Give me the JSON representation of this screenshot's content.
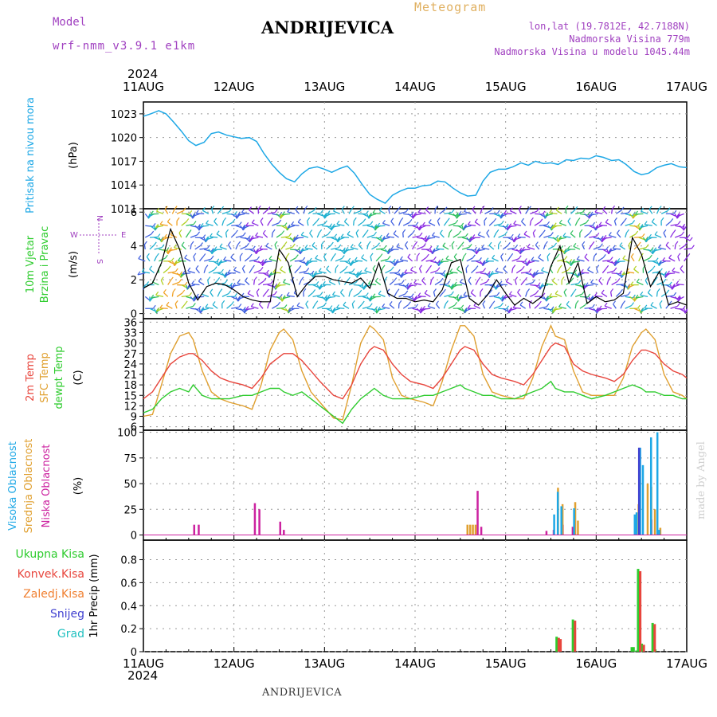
{
  "header": {
    "model_label": "Model",
    "model_name": "wrf-nmm_v3.9.1 e1km",
    "title": "ANDRIJEVICA",
    "subtitle": "Meteogram",
    "lonlat": "lon,lat (19.7812E, 42.7188N)",
    "station_alt": "Nadmorska Visina 779m",
    "model_alt": "Nadmorska Visina u modelu 1045.44m",
    "year_top": "2024",
    "year_bottom": "2024",
    "footer": "ANDRIJEVICA",
    "credit": "made by Angel"
  },
  "colors": {
    "pressure": "#1ea8e6",
    "temp2m": "#e8453c",
    "sfc": "#e0a030",
    "dew": "#2ecc2e",
    "cloud_high": "#1ea8e6",
    "cloud_mid": "#e0a030",
    "cloud_low": "#cc22a0",
    "precip_total": "#2ecc2e",
    "precip_conv": "#e8453c",
    "precip_frozen": "#f07f30",
    "precip_snow": "#4040d0",
    "precip_hail": "#20c0c0",
    "purple_text": "#a040c0"
  },
  "chart_data": [
    {
      "id": "pressure",
      "type": "line",
      "x_categories": [
        "11AUG",
        "12AUG",
        "13AUG",
        "14AUG",
        "15AUG",
        "16AUG",
        "17AUG"
      ],
      "ylabel_left": "Pritisak na nivou mora",
      "ylabel_unit": "(hPa)",
      "yticks": [
        "1011",
        "1014",
        "1017",
        "1020",
        "1023"
      ],
      "ylim": [
        1011,
        1024.5
      ],
      "xlim": [
        0,
        6
      ],
      "series": [
        {
          "color": "#1ea8e6",
          "x": [
            0,
            0.08,
            0.17,
            0.25,
            0.33,
            0.42,
            0.5,
            0.58,
            0.67,
            0.75,
            0.83,
            0.92,
            1.0,
            1.08,
            1.17,
            1.25,
            1.33,
            1.42,
            1.5,
            1.58,
            1.67,
            1.75,
            1.83,
            1.92,
            2.0,
            2.08,
            2.17,
            2.25,
            2.33,
            2.42,
            2.5,
            2.58,
            2.67,
            2.75,
            2.83,
            2.92,
            3.0,
            3.08,
            3.17,
            3.25,
            3.33,
            3.42,
            3.5,
            3.58,
            3.67,
            3.75,
            3.83,
            3.92,
            4.0,
            4.08,
            4.17,
            4.25,
            4.33,
            4.42,
            4.5,
            4.58,
            4.67,
            4.75,
            4.83,
            4.92,
            5.0,
            5.08,
            5.17,
            5.25,
            5.33,
            5.42,
            5.5,
            5.58,
            5.67,
            5.75,
            5.83,
            5.92,
            6.0
          ],
          "y": [
            1022.7,
            1023.0,
            1023.4,
            1023.0,
            1022.0,
            1020.8,
            1019.6,
            1019.0,
            1019.4,
            1020.5,
            1020.7,
            1020.3,
            1020.1,
            1019.9,
            1020.0,
            1019.5,
            1018.0,
            1016.6,
            1015.6,
            1014.8,
            1014.4,
            1015.4,
            1016.1,
            1016.3,
            1016.0,
            1015.6,
            1016.1,
            1016.4,
            1015.5,
            1014.0,
            1012.8,
            1012.2,
            1011.7,
            1012.7,
            1013.2,
            1013.6,
            1013.6,
            1013.9,
            1014.0,
            1014.5,
            1014.4,
            1013.6,
            1013.0,
            1012.6,
            1012.7,
            1014.5,
            1015.6,
            1016.0,
            1016.0,
            1016.3,
            1016.8,
            1016.5,
            1017.0,
            1016.7,
            1016.8,
            1016.6,
            1017.2,
            1017.1,
            1017.4,
            1017.3,
            1017.7,
            1017.5,
            1017.1,
            1017.2,
            1016.6,
            1015.7,
            1015.3,
            1015.5,
            1016.2,
            1016.5,
            1016.7,
            1016.3,
            1016.2
          ]
        }
      ]
    },
    {
      "id": "wind",
      "type": "line",
      "x_categories": [
        "11AUG",
        "12AUG",
        "13AUG",
        "14AUG",
        "15AUG",
        "16AUG",
        "17AUG"
      ],
      "ylabel_left1": "10m Vjetar",
      "ylabel_left2": "Brzina i Pravac",
      "ylabel_unit": "(m/s)",
      "yticks": [
        "0",
        "2",
        "4",
        "6"
      ],
      "ylim": [
        -0.3,
        6.2
      ],
      "xlim": [
        0,
        6
      ],
      "compass": {
        "n": "N",
        "s": "S",
        "e": "E",
        "w": "W"
      },
      "series": [
        {
          "color": "#000000",
          "x": [
            0,
            0.1,
            0.2,
            0.3,
            0.4,
            0.5,
            0.6,
            0.7,
            0.8,
            0.9,
            1.0,
            1.1,
            1.2,
            1.3,
            1.4,
            1.5,
            1.6,
            1.7,
            1.8,
            1.9,
            2.0,
            2.1,
            2.2,
            2.3,
            2.4,
            2.5,
            2.6,
            2.7,
            2.8,
            2.9,
            3.0,
            3.1,
            3.2,
            3.3,
            3.4,
            3.5,
            3.6,
            3.7,
            3.8,
            3.9,
            4.0,
            4.1,
            4.2,
            4.3,
            4.4,
            4.5,
            4.6,
            4.7,
            4.8,
            4.9,
            5.0,
            5.1,
            5.2,
            5.3,
            5.4,
            5.5,
            5.6,
            5.7,
            5.8,
            5.9,
            6.0
          ],
          "y": [
            1.5,
            1.8,
            3.0,
            5.0,
            3.8,
            1.8,
            0.8,
            1.6,
            1.8,
            1.7,
            1.4,
            1.0,
            0.8,
            0.7,
            0.7,
            3.8,
            3.0,
            1.0,
            1.7,
            2.2,
            2.2,
            2.0,
            1.9,
            1.8,
            2.1,
            1.5,
            3.0,
            1.2,
            0.9,
            0.9,
            0.7,
            0.8,
            0.7,
            1.4,
            3.0,
            3.2,
            0.9,
            0.5,
            1.1,
            2.0,
            1.2,
            0.5,
            0.9,
            0.6,
            1.0,
            2.8,
            4.0,
            1.8,
            3.0,
            0.6,
            1.0,
            0.7,
            0.8,
            1.2,
            4.5,
            3.5,
            1.6,
            2.5,
            0.5,
            0.7,
            0.5
          ]
        }
      ]
    },
    {
      "id": "temperature",
      "type": "line",
      "x_categories": [
        "11AUG",
        "12AUG",
        "13AUG",
        "14AUG",
        "15AUG",
        "16AUG",
        "17AUG"
      ],
      "ylabel_left1": "2m Temp",
      "ylabel_left2": "SFC Temp",
      "ylabel_left3": "dewpt Temp",
      "ylabel_unit": "(C)",
      "yticks": [
        "6",
        "9",
        "12",
        "15",
        "18",
        "21",
        "24",
        "27",
        "30",
        "33",
        "36"
      ],
      "ylim": [
        5,
        37
      ],
      "xlim": [
        0,
        6
      ],
      "series": [
        {
          "color": "#e0a030",
          "x": [
            0,
            0.1,
            0.2,
            0.3,
            0.4,
            0.5,
            0.55,
            0.65,
            0.75,
            0.85,
            0.95,
            1.1,
            1.2,
            1.3,
            1.4,
            1.5,
            1.55,
            1.65,
            1.75,
            1.85,
            1.95,
            2.1,
            2.2,
            2.3,
            2.4,
            2.5,
            2.55,
            2.65,
            2.75,
            2.85,
            2.95,
            3.1,
            3.2,
            3.3,
            3.4,
            3.5,
            3.55,
            3.65,
            3.75,
            3.85,
            3.95,
            4.1,
            4.2,
            4.3,
            4.4,
            4.5,
            4.55,
            4.65,
            4.75,
            4.85,
            4.95,
            5.1,
            5.2,
            5.3,
            5.4,
            5.5,
            5.55,
            5.65,
            5.75,
            5.85,
            5.95,
            6.0
          ],
          "y": [
            9,
            9.5,
            18,
            27,
            32,
            33,
            31,
            22,
            16,
            14,
            13,
            12,
            11,
            18,
            28,
            33,
            34,
            31,
            22,
            16,
            13,
            8.5,
            8,
            18,
            30,
            35,
            34,
            31,
            20,
            15,
            14,
            13,
            12,
            19,
            28,
            35,
            35,
            32,
            21,
            16,
            15,
            14,
            14,
            20,
            29,
            35,
            32,
            31,
            22,
            16,
            15,
            15,
            15,
            20,
            29,
            33,
            34,
            31,
            21,
            16,
            15,
            14
          ]
        },
        {
          "color": "#e8453c",
          "x": [
            0,
            0.1,
            0.2,
            0.3,
            0.4,
            0.5,
            0.55,
            0.65,
            0.75,
            0.85,
            0.95,
            1.1,
            1.2,
            1.3,
            1.4,
            1.5,
            1.55,
            1.65,
            1.75,
            1.85,
            1.95,
            2.1,
            2.2,
            2.3,
            2.4,
            2.5,
            2.55,
            2.65,
            2.75,
            2.85,
            2.95,
            3.1,
            3.2,
            3.3,
            3.4,
            3.5,
            3.55,
            3.65,
            3.75,
            3.85,
            3.95,
            4.1,
            4.2,
            4.3,
            4.4,
            4.5,
            4.55,
            4.65,
            4.75,
            4.85,
            4.95,
            5.1,
            5.2,
            5.3,
            5.4,
            5.5,
            5.55,
            5.65,
            5.75,
            5.85,
            5.95,
            6.0
          ],
          "y": [
            14,
            16,
            20,
            24,
            26,
            27,
            27,
            25,
            22,
            20,
            19,
            18,
            17,
            20,
            24,
            26,
            27,
            27,
            25,
            22,
            19,
            15,
            14,
            18,
            24,
            28,
            29,
            28,
            24,
            21,
            19,
            18,
            17,
            20,
            24,
            28,
            29,
            28,
            24,
            21,
            20,
            19,
            18,
            21,
            25,
            29,
            30,
            29,
            24,
            22,
            21,
            20,
            19,
            21,
            25,
            28,
            28,
            27,
            24,
            22,
            21,
            20
          ]
        },
        {
          "color": "#2ecc2e",
          "x": [
            0,
            0.1,
            0.2,
            0.3,
            0.4,
            0.5,
            0.55,
            0.65,
            0.75,
            0.85,
            0.95,
            1.1,
            1.2,
            1.3,
            1.4,
            1.5,
            1.55,
            1.65,
            1.75,
            1.85,
            1.95,
            2.1,
            2.2,
            2.3,
            2.4,
            2.5,
            2.55,
            2.65,
            2.75,
            2.85,
            2.95,
            3.1,
            3.2,
            3.3,
            3.4,
            3.5,
            3.55,
            3.65,
            3.75,
            3.85,
            3.95,
            4.1,
            4.2,
            4.3,
            4.4,
            4.5,
            4.55,
            4.65,
            4.75,
            4.85,
            4.95,
            5.1,
            5.2,
            5.3,
            5.4,
            5.5,
            5.55,
            5.65,
            5.75,
            5.85,
            5.95,
            6.0
          ],
          "y": [
            10,
            11,
            14,
            16,
            17,
            16,
            18,
            15,
            14,
            14,
            14,
            15,
            15,
            16,
            17,
            17,
            16,
            15,
            16,
            14,
            12,
            9,
            7,
            11,
            14,
            16,
            17,
            15,
            14,
            14,
            14,
            15,
            15,
            16,
            17,
            18,
            17,
            16,
            15,
            15,
            14,
            14,
            15,
            16,
            17,
            19,
            17,
            16,
            16,
            15,
            14,
            15,
            16,
            17,
            18,
            17,
            16,
            16,
            15,
            15,
            14,
            14
          ]
        }
      ]
    },
    {
      "id": "cloud",
      "type": "bar",
      "x_categories": [
        "11AUG",
        "12AUG",
        "13AUG",
        "14AUG",
        "15AUG",
        "16AUG",
        "17AUG"
      ],
      "ylabel_left1": "Visoka Oblacnost",
      "ylabel_left2": "Srednja Oblacnost",
      "ylabel_left3": "Niska Oblacnost",
      "ylabel_unit": "(%)",
      "yticks": [
        "0",
        "25",
        "50",
        "75",
        "100"
      ],
      "ylim": [
        -5,
        102
      ],
      "xlim": [
        0,
        6
      ],
      "series": [
        {
          "color": "#cc22a0",
          "x": [
            0.55,
            0.6,
            1.22,
            1.27,
            1.5,
            1.54,
            3.68,
            3.72,
            4.44,
            4.52,
            4.62,
            4.73,
            5.42,
            5.47,
            5.6
          ],
          "y": [
            10,
            10,
            31,
            25,
            13,
            5,
            43,
            8,
            4,
            5,
            10,
            8,
            10,
            10,
            15
          ]
        },
        {
          "color": "#e0a030",
          "x": [
            3.55,
            3.58,
            3.61,
            3.64,
            4.55,
            4.6,
            4.74,
            4.77,
            5.44,
            5.54,
            5.58,
            5.62,
            5.68
          ],
          "y": [
            10,
            10,
            10,
            10,
            46,
            30,
            32,
            14,
            30,
            50,
            47,
            25,
            7
          ]
        },
        {
          "color": "#1ea8e6",
          "x": [
            4.49,
            4.53,
            4.57,
            4.71,
            5.44,
            5.47,
            5.56,
            5.63,
            5.38,
            5.4,
            5.65
          ],
          "y": [
            20,
            42,
            28,
            26,
            85,
            68,
            95,
            100,
            20,
            22,
            5
          ]
        },
        {
          "color": "#4040d0",
          "x": [
            5.41
          ],
          "y": [
            85
          ]
        }
      ]
    },
    {
      "id": "precip",
      "type": "bar",
      "x_categories": [
        "11AUG",
        "12AUG",
        "13AUG",
        "14AUG",
        "15AUG",
        "16AUG",
        "17AUG"
      ],
      "ylabel_unit": "1hr Precip (mm)",
      "legend": [
        "Ukupna Kisa",
        "Konvek.Kisa",
        "Zaledj.Kisa",
        "Snijeg",
        "Grad"
      ],
      "yticks": [
        "0",
        "0.2",
        "0.4",
        "0.6",
        "0.8"
      ],
      "ylim": [
        0,
        0.97
      ],
      "xlim": [
        0,
        6
      ],
      "series": [
        {
          "name": "Ukupna Kisa",
          "color": "#2ecc2e",
          "x": [
            4.55,
            4.57,
            4.73,
            5.45,
            5.49,
            5.61,
            5.64,
            5.43,
            5.38,
            5.4
          ],
          "y": [
            0.13,
            0.12,
            0.28,
            0.72,
            0.07,
            0.25,
            0.02,
            0.01,
            0.04,
            0.04
          ]
        },
        {
          "name": "Konvek.Kisa",
          "color": "#e8453c",
          "x": [
            4.56,
            4.58,
            4.74,
            5.46,
            5.5,
            5.62
          ],
          "y": [
            0.12,
            0.11,
            0.27,
            0.7,
            0.06,
            0.24
          ]
        }
      ]
    }
  ]
}
